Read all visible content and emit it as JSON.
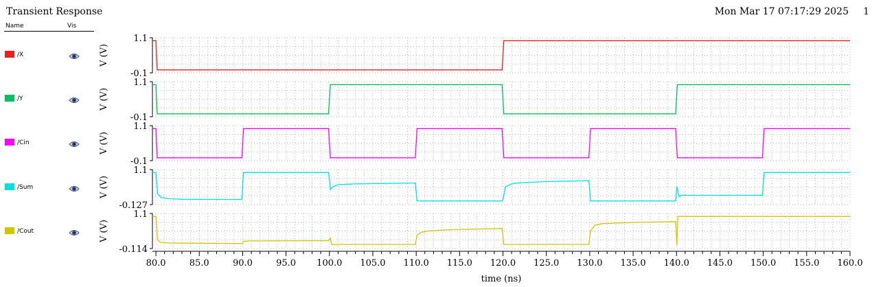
{
  "window": {
    "title": "Transient Response",
    "datetime": "Mon Mar 17 07:17:29 2025",
    "page": "1"
  },
  "legend": {
    "name_header": "Name",
    "vis_header": "Vis",
    "eye_icon": "eye-icon"
  },
  "chart_data": {
    "type": "line",
    "xlabel": "time (ns)",
    "xlim": [
      79.6,
      160.0
    ],
    "xticks": [
      "80.0",
      "85.0",
      "90.0",
      "95.0",
      "100.0",
      "105.0",
      "110.0",
      "115.0",
      "120.0",
      "125.0",
      "130.0",
      "135.0",
      "140.0",
      "145.0",
      "150.0",
      "155.0",
      "160.0"
    ],
    "grid": true,
    "series": [
      {
        "name": "/X",
        "color": "#e8211a",
        "ylabel": "V (V)",
        "ytick_top": "1.1",
        "ytick_bottom": "-0.1",
        "ylim": [
          -0.1,
          1.1
        ],
        "x": [
          79.6,
          80.0,
          80.15,
          119.9,
          120.1,
          160.0
        ],
        "y": [
          1.0,
          1.0,
          0.0,
          0.0,
          1.0,
          1.0
        ]
      },
      {
        "name": "/Y",
        "color": "#00c060",
        "ylabel": "V (V)",
        "ytick_top": "1.1",
        "ytick_bottom": "-0.1",
        "ylim": [
          -0.1,
          1.1
        ],
        "x": [
          79.6,
          80.0,
          80.15,
          99.9,
          100.1,
          119.9,
          120.1,
          139.9,
          140.1,
          160.0
        ],
        "y": [
          1.0,
          1.0,
          0.0,
          0.0,
          1.0,
          1.0,
          0.0,
          0.0,
          1.0,
          1.0
        ]
      },
      {
        "name": "/Cin",
        "color": "#ff00ff",
        "ylabel": "V (V)",
        "ytick_top": "1.1",
        "ytick_bottom": "-0.1",
        "ylim": [
          -0.1,
          1.1
        ],
        "x": [
          79.6,
          80.0,
          80.15,
          89.9,
          90.1,
          99.9,
          100.1,
          109.9,
          110.1,
          119.9,
          120.1,
          129.9,
          130.1,
          139.9,
          140.1,
          149.9,
          150.1,
          160.0
        ],
        "y": [
          1.0,
          1.0,
          0.0,
          0.0,
          1.0,
          1.0,
          0.0,
          0.0,
          1.0,
          1.0,
          0.0,
          0.0,
          1.0,
          1.0,
          0.0,
          0.0,
          1.0,
          1.0
        ]
      },
      {
        "name": "/Sum",
        "color": "#00e0e0",
        "ylabel": "V (V)",
        "ytick_top": "1.1",
        "ytick_bottom": "-0.127",
        "ylim": [
          -0.127,
          1.1
        ],
        "x": [
          79.6,
          80.0,
          80.2,
          80.6,
          81.5,
          83.0,
          89.9,
          90.1,
          99.9,
          100.05,
          100.12,
          100.4,
          101.0,
          103.0,
          109.9,
          110.1,
          119.9,
          120.0,
          120.3,
          121.0,
          122.0,
          125.0,
          129.9,
          130.1,
          139.9,
          140.05,
          140.15,
          140.3,
          140.6,
          149.9,
          150.1,
          160.0
        ],
        "y": [
          1.0,
          1.0,
          0.25,
          0.12,
          0.08,
          0.06,
          0.05,
          1.0,
          1.0,
          0.65,
          0.4,
          0.5,
          0.57,
          0.6,
          0.63,
          0.0,
          0.0,
          0.05,
          0.5,
          0.6,
          0.64,
          0.68,
          0.71,
          0.0,
          0.0,
          0.5,
          0.35,
          0.15,
          0.2,
          0.2,
          1.0,
          1.0
        ]
      },
      {
        "name": "/Cout",
        "color": "#d4c400",
        "ylabel": "V (V)",
        "ytick_top": "1.1",
        "ytick_bottom": "-0.114",
        "ylim": [
          -0.114,
          1.1
        ],
        "x": [
          79.6,
          80.0,
          80.2,
          80.5,
          81.5,
          89.9,
          90.2,
          91.0,
          99.9,
          100.1,
          100.2,
          100.3,
          101.0,
          109.9,
          110.1,
          110.6,
          111.5,
          114.0,
          119.9,
          120.1,
          129.9,
          130.1,
          130.6,
          131.5,
          135.0,
          139.9,
          140.05,
          140.15,
          160.0
        ],
        "y": [
          1.0,
          1.0,
          0.2,
          0.1,
          0.08,
          0.06,
          0.14,
          0.15,
          0.16,
          0.25,
          0.1,
          0.02,
          0.03,
          0.03,
          0.35,
          0.45,
          0.5,
          0.54,
          0.58,
          0.03,
          0.03,
          0.5,
          0.7,
          0.75,
          0.79,
          0.82,
          0.0,
          1.0,
          1.0
        ]
      }
    ]
  }
}
